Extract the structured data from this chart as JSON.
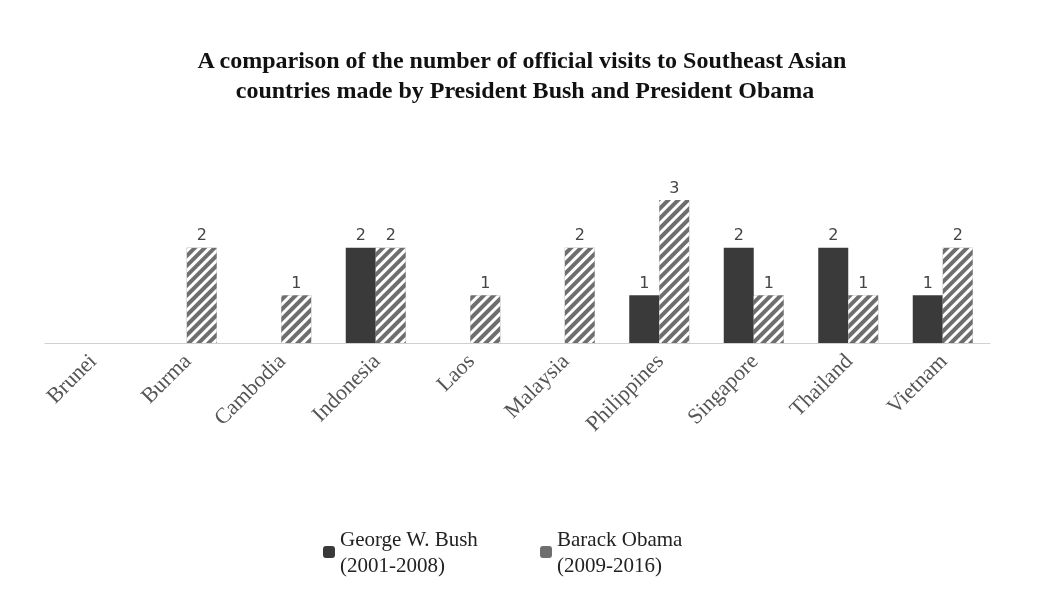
{
  "chart_data": {
    "type": "bar",
    "title": "A comparison of the number of official visits to Southeast Asian countries made by President Bush and President Obama",
    "categories": [
      "Brunei",
      "Burma",
      "Cambodia",
      "Indonesia",
      "Laos",
      "Malaysia",
      "Philippines",
      "Singapore",
      "Thailand",
      "Vietnam"
    ],
    "series": [
      {
        "name": "George W. Bush (2001-2008)",
        "color": "#3a3a3a",
        "values": [
          0,
          0,
          0,
          2,
          0,
          0,
          1,
          2,
          2,
          1
        ],
        "value_labels": [
          null,
          null,
          null,
          "2",
          null,
          null,
          "1",
          "2",
          "2",
          "1"
        ]
      },
      {
        "name": "Barack Obama (2009-2016)",
        "color": "#6e6e6e",
        "values": [
          0,
          2,
          1,
          2,
          1,
          2,
          3,
          1,
          1,
          2
        ],
        "value_labels": [
          null,
          "2",
          "1",
          "2",
          "1",
          "2",
          "3",
          "1",
          "1",
          "2"
        ]
      }
    ],
    "legend": "bottom"
  }
}
